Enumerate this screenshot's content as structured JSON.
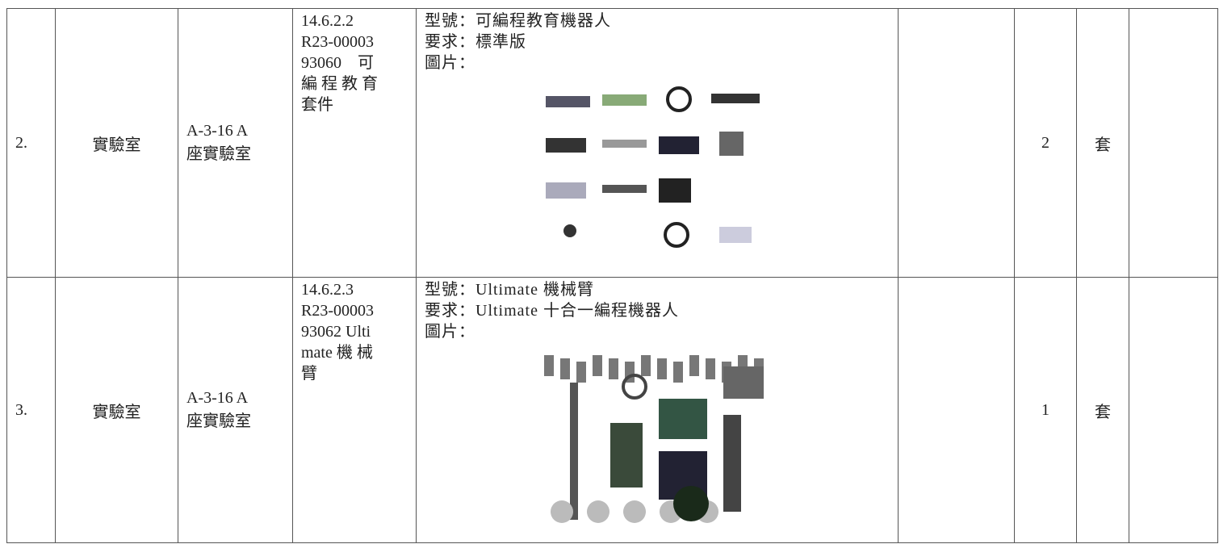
{
  "rows": [
    {
      "no": "2.",
      "location": "實驗室",
      "room": [
        "A-3-16 A",
        "座實驗室"
      ],
      "item": [
        "14.6.2.2",
        "R23-00003",
        "93060　可",
        "編 程 教 育",
        "套件"
      ],
      "spec": [
        "型號：可編程教育機器人",
        "要求：標準版",
        "圖片："
      ],
      "quantity": "2",
      "unit": "套"
    },
    {
      "no": "3.",
      "location": "實驗室",
      "room": [
        "A-3-16 A",
        "座實驗室"
      ],
      "item": [
        "14.6.2.3",
        "R23-00003",
        "93062 Ulti",
        "mate 機 械",
        "臂"
      ],
      "spec": [
        "型號：Ultimate 機械臂",
        "要求：Ultimate 十合一編程機器人",
        "圖片："
      ],
      "quantity": "1",
      "unit": "套"
    }
  ]
}
